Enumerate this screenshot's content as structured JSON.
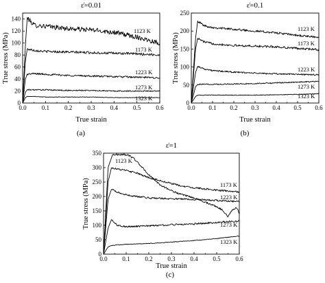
{
  "chart_data": [
    {
      "type": "line",
      "panel": "(a)",
      "title": "ε̇=0.01",
      "xlabel": "True strain",
      "ylabel": "True stress (MPa)",
      "xlim": [
        0.0,
        0.6
      ],
      "ylim": [
        0,
        150
      ],
      "xticks": [
        "0.0",
        "0.1",
        "0.2",
        "0.3",
        "0.4",
        "0.5",
        "0.6"
      ],
      "yticks": [
        "0",
        "20",
        "40",
        "60",
        "80",
        "100",
        "120",
        "140"
      ],
      "series": [
        {
          "name": "1123 K",
          "x": [
            0,
            0.012,
            0.02,
            0.05,
            0.1,
            0.2,
            0.3,
            0.4,
            0.5,
            0.6
          ],
          "y": [
            0,
            95,
            142,
            130,
            128,
            124,
            122,
            118,
            110,
            100
          ],
          "noise": 4
        },
        {
          "name": "1173 K",
          "x": [
            0,
            0.012,
            0.02,
            0.05,
            0.1,
            0.2,
            0.3,
            0.4,
            0.5,
            0.6
          ],
          "y": [
            0,
            70,
            90,
            88,
            86,
            85,
            84,
            83,
            82,
            80
          ],
          "noise": 2
        },
        {
          "name": "1223 K",
          "x": [
            0,
            0.012,
            0.02,
            0.05,
            0.1,
            0.2,
            0.3,
            0.4,
            0.5,
            0.6
          ],
          "y": [
            0,
            40,
            48,
            49,
            48,
            46,
            45,
            44,
            43,
            42
          ],
          "noise": 1.5
        },
        {
          "name": "1273 K",
          "x": [
            0,
            0.012,
            0.02,
            0.05,
            0.1,
            0.2,
            0.3,
            0.4,
            0.5,
            0.6
          ],
          "y": [
            0,
            18,
            22,
            22,
            22,
            21,
            21,
            20,
            20,
            20
          ],
          "noise": 1
        },
        {
          "name": "1323 K",
          "x": [
            0,
            0.012,
            0.02,
            0.05,
            0.1,
            0.2,
            0.3,
            0.4,
            0.5,
            0.6
          ],
          "y": [
            0,
            9,
            11,
            11,
            10,
            10,
            10,
            9,
            9,
            9
          ],
          "noise": 0.4
        }
      ]
    },
    {
      "type": "line",
      "panel": "(b)",
      "title": "ε̇=0.1",
      "xlabel": "True strain",
      "ylabel": "True stress (MPa)",
      "xlim": [
        0.0,
        0.6
      ],
      "ylim": [
        0,
        250
      ],
      "xticks": [
        "0.0",
        "0.1",
        "0.2",
        "0.3",
        "0.4",
        "0.5",
        "0.6"
      ],
      "yticks": [
        "0",
        "50",
        "100",
        "150",
        "200",
        "250"
      ],
      "series": [
        {
          "name": "1123 K",
          "x": [
            0,
            0.02,
            0.03,
            0.06,
            0.1,
            0.2,
            0.3,
            0.4,
            0.5,
            0.6
          ],
          "y": [
            0,
            180,
            228,
            215,
            210,
            205,
            200,
            195,
            188,
            182
          ],
          "noise": 3
        },
        {
          "name": "1173 K",
          "x": [
            0,
            0.02,
            0.03,
            0.06,
            0.1,
            0.2,
            0.3,
            0.4,
            0.5,
            0.6
          ],
          "y": [
            0,
            150,
            180,
            170,
            165,
            160,
            158,
            156,
            152,
            148
          ],
          "noise": 3
        },
        {
          "name": "1223 K",
          "x": [
            0,
            0.02,
            0.03,
            0.06,
            0.1,
            0.2,
            0.3,
            0.4,
            0.5,
            0.6
          ],
          "y": [
            0,
            85,
            102,
            95,
            90,
            86,
            83,
            81,
            80,
            78
          ],
          "noise": 2
        },
        {
          "name": "1273 K",
          "x": [
            0,
            0.02,
            0.03,
            0.06,
            0.1,
            0.2,
            0.3,
            0.4,
            0.5,
            0.6
          ],
          "y": [
            0,
            45,
            52,
            52,
            52,
            53,
            54,
            56,
            58,
            60
          ],
          "noise": 1.5
        },
        {
          "name": "1323 K",
          "x": [
            0,
            0.02,
            0.03,
            0.06,
            0.1,
            0.2,
            0.3,
            0.4,
            0.5,
            0.6
          ],
          "y": [
            0,
            18,
            22,
            22,
            22,
            22,
            22,
            23,
            24,
            26
          ],
          "noise": 0.8
        }
      ]
    },
    {
      "type": "line",
      "panel": "(c)",
      "title": "ε̇=1",
      "xlabel": "True strain",
      "ylabel": "True stress (MPa)",
      "xlim": [
        0.0,
        0.6
      ],
      "ylim": [
        0,
        350
      ],
      "xticks": [
        "0.0",
        "0.1",
        "0.2",
        "0.3",
        "0.4",
        "0.5",
        "0.6"
      ],
      "yticks": [
        "0",
        "50",
        "100",
        "150",
        "200",
        "250",
        "300",
        "350"
      ],
      "series": [
        {
          "name": "1123 K",
          "x": [
            0,
            0.02,
            0.04,
            0.08,
            0.1,
            0.13,
            0.16,
            0.2,
            0.25,
            0.3,
            0.35,
            0.4,
            0.45,
            0.5,
            0.53,
            0.55,
            0.57,
            0.59,
            0.6
          ],
          "y": [
            0,
            300,
            345,
            345,
            345,
            335,
            310,
            275,
            240,
            220,
            205,
            195,
            180,
            165,
            150,
            130,
            155,
            160,
            140
          ],
          "noise": 3
        },
        {
          "name": "1173 K",
          "x": [
            0,
            0.02,
            0.035,
            0.06,
            0.1,
            0.15,
            0.2,
            0.25,
            0.3,
            0.35,
            0.4,
            0.5,
            0.6
          ],
          "y": [
            0,
            250,
            300,
            295,
            290,
            280,
            265,
            255,
            245,
            235,
            230,
            222,
            215
          ],
          "noise": 3
        },
        {
          "name": "1223 K",
          "x": [
            0,
            0.02,
            0.035,
            0.06,
            0.1,
            0.2,
            0.3,
            0.4,
            0.5,
            0.6
          ],
          "y": [
            0,
            190,
            225,
            215,
            205,
            195,
            192,
            190,
            186,
            182
          ],
          "noise": 3
        },
        {
          "name": "1273 K",
          "x": [
            0,
            0.02,
            0.035,
            0.06,
            0.1,
            0.2,
            0.3,
            0.4,
            0.5,
            0.6
          ],
          "y": [
            0,
            90,
            120,
            100,
            95,
            98,
            102,
            105,
            110,
            115
          ],
          "noise": 3
        },
        {
          "name": "1323 K",
          "x": [
            0,
            0.02,
            0.035,
            0.06,
            0.1,
            0.2,
            0.3,
            0.4,
            0.5,
            0.6
          ],
          "y": [
            0,
            25,
            30,
            32,
            34,
            37,
            42,
            47,
            54,
            63
          ],
          "noise": 1
        }
      ]
    }
  ],
  "panels": [
    {
      "letter": "(a)"
    },
    {
      "letter": "(b)"
    },
    {
      "letter": "(c)"
    }
  ]
}
